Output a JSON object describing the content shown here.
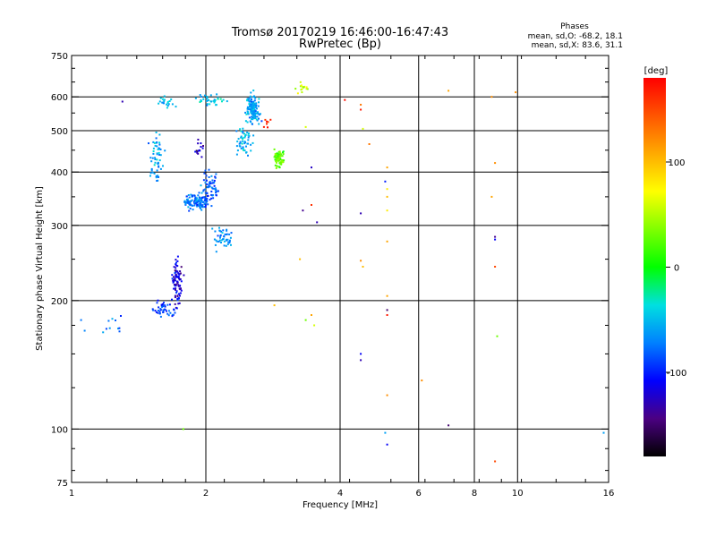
{
  "chart_data": {
    "type": "scatter",
    "title": "Tromsø 20170219 16:46:00-16:47:43",
    "subtitle": "RwPretec (Bp)",
    "stats": {
      "heading": "Phases",
      "line1": "mean, sd,O: -68.2, 18.1",
      "line2": "mean, sd,X: 83.6, 31.1"
    },
    "xlabel": "Frequency [MHz]",
    "ylabel": "Stationary phase Virtual Height [km]",
    "x_scale": "log",
    "y_scale": "log",
    "xlim": [
      1,
      16
    ],
    "ylim": [
      75,
      750
    ],
    "x_ticks": [
      1,
      2,
      4,
      6,
      8,
      10,
      16
    ],
    "x_tick_labels": [
      "1",
      "2",
      "4",
      "6",
      "8",
      "10",
      "16"
    ],
    "x_grid": [
      2,
      4,
      6,
      8,
      10
    ],
    "y_ticks": [
      75,
      100,
      200,
      300,
      400,
      500,
      600,
      750
    ],
    "y_tick_labels": [
      "75",
      "100",
      "200",
      "300",
      "400",
      "500",
      "600",
      "750"
    ],
    "y_grid": [
      100,
      200,
      300,
      400,
      500,
      600
    ],
    "grid": true,
    "colorbar": {
      "label": "[deg]",
      "range": [
        -180,
        180
      ],
      "ticks": [
        100,
        0,
        -100
      ],
      "tick_labels": [
        "100",
        "0",
        "-100"
      ]
    },
    "series": [
      {
        "clusters": [
          {
            "fc": 1.72,
            "hc": 220,
            "fs": 0.03,
            "hs": 0.13,
            "n": 90,
            "phase": -115
          },
          {
            "fc": 1.62,
            "hc": 190,
            "fs": 0.05,
            "hs": 0.04,
            "n": 45,
            "phase": -90
          },
          {
            "fc": 1.55,
            "hc": 430,
            "fs": 0.04,
            "hs": 0.13,
            "n": 55,
            "phase": -60
          },
          {
            "fc": 1.9,
            "hc": 340,
            "fs": 0.07,
            "hs": 0.04,
            "n": 130,
            "phase": -75
          },
          {
            "fc": 2.05,
            "hc": 370,
            "fs": 0.04,
            "hs": 0.08,
            "n": 60,
            "phase": -80
          },
          {
            "fc": 2.55,
            "hc": 560,
            "fs": 0.04,
            "hs": 0.07,
            "n": 150,
            "phase": -58
          },
          {
            "fc": 2.45,
            "hc": 470,
            "fs": 0.04,
            "hs": 0.07,
            "n": 50,
            "phase": -50
          },
          {
            "fc": 2.2,
            "hc": 280,
            "fs": 0.05,
            "hs": 0.06,
            "n": 45,
            "phase": -70
          },
          {
            "fc": 2.05,
            "hc": 590,
            "fs": 0.06,
            "hs": 0.04,
            "n": 35,
            "phase": -50
          },
          {
            "fc": 1.62,
            "hc": 580,
            "fs": 0.05,
            "hs": 0.04,
            "n": 20,
            "phase": -50
          },
          {
            "fc": 1.95,
            "hc": 450,
            "fs": 0.04,
            "hs": 0.04,
            "n": 15,
            "phase": -125
          },
          {
            "fc": 1.25,
            "hc": 175,
            "fs": 0.07,
            "hs": 0.05,
            "n": 10,
            "phase": -75
          },
          {
            "fc": 2.92,
            "hc": 430,
            "fs": 0.025,
            "hs": 0.05,
            "n": 70,
            "phase": 25
          },
          {
            "fc": 3.3,
            "hc": 630,
            "fs": 0.03,
            "hs": 0.03,
            "n": 14,
            "phase": 55
          },
          {
            "fc": 2.75,
            "hc": 520,
            "fs": 0.02,
            "hs": 0.03,
            "n": 6,
            "phase": 165
          }
        ],
        "points": [
          {
            "x": 1.05,
            "y": 180,
            "phase": -75
          },
          {
            "x": 1.07,
            "y": 170,
            "phase": -70
          },
          {
            "x": 1.3,
            "y": 585,
            "phase": -130
          },
          {
            "x": 1.78,
            "y": 100,
            "phase": 30
          },
          {
            "x": 2.7,
            "y": 510,
            "phase": 165
          },
          {
            "x": 2.85,
            "y": 195,
            "phase": 100
          },
          {
            "x": 3.25,
            "y": 250,
            "phase": 100
          },
          {
            "x": 3.3,
            "y": 325,
            "phase": -140
          },
          {
            "x": 3.35,
            "y": 510,
            "phase": 60
          },
          {
            "x": 3.45,
            "y": 410,
            "phase": -125
          },
          {
            "x": 3.45,
            "y": 335,
            "phase": 160
          },
          {
            "x": 3.55,
            "y": 305,
            "phase": -130
          },
          {
            "x": 3.35,
            "y": 180,
            "phase": 30
          },
          {
            "x": 3.45,
            "y": 185,
            "phase": 110
          },
          {
            "x": 3.5,
            "y": 175,
            "phase": 60
          },
          {
            "x": 4.1,
            "y": 590,
            "phase": 175
          },
          {
            "x": 4.45,
            "y": 575,
            "phase": 130
          },
          {
            "x": 4.45,
            "y": 560,
            "phase": 170
          },
          {
            "x": 4.5,
            "y": 505,
            "phase": 60
          },
          {
            "x": 4.65,
            "y": 465,
            "phase": 130
          },
          {
            "x": 4.45,
            "y": 320,
            "phase": -130
          },
          {
            "x": 4.45,
            "y": 248,
            "phase": 120
          },
          {
            "x": 4.5,
            "y": 240,
            "phase": 100
          },
          {
            "x": 4.45,
            "y": 150,
            "phase": -110
          },
          {
            "x": 4.45,
            "y": 145,
            "phase": -130
          },
          {
            "x": 5.1,
            "y": 410,
            "phase": 110
          },
          {
            "x": 5.05,
            "y": 380,
            "phase": -100
          },
          {
            "x": 5.1,
            "y": 365,
            "phase": 80
          },
          {
            "x": 5.1,
            "y": 350,
            "phase": 100
          },
          {
            "x": 5.1,
            "y": 325,
            "phase": 80
          },
          {
            "x": 5.1,
            "y": 275,
            "phase": 110
          },
          {
            "x": 5.1,
            "y": 205,
            "phase": 110
          },
          {
            "x": 5.1,
            "y": 190,
            "phase": -150
          },
          {
            "x": 5.1,
            "y": 185,
            "phase": 170
          },
          {
            "x": 5.1,
            "y": 120,
            "phase": 120
          },
          {
            "x": 5.05,
            "y": 98,
            "phase": -60
          },
          {
            "x": 5.1,
            "y": 92,
            "phase": -110
          },
          {
            "x": 6.1,
            "y": 130,
            "phase": 120
          },
          {
            "x": 7.0,
            "y": 620,
            "phase": 110
          },
          {
            "x": 7.0,
            "y": 102,
            "phase": -150
          },
          {
            "x": 8.75,
            "y": 600,
            "phase": 120
          },
          {
            "x": 8.9,
            "y": 420,
            "phase": 120
          },
          {
            "x": 8.75,
            "y": 350,
            "phase": 110
          },
          {
            "x": 8.9,
            "y": 282,
            "phase": -140
          },
          {
            "x": 8.9,
            "y": 278,
            "phase": -110
          },
          {
            "x": 8.9,
            "y": 240,
            "phase": 150
          },
          {
            "x": 9.0,
            "y": 165,
            "phase": 30
          },
          {
            "x": 8.9,
            "y": 84,
            "phase": 150
          },
          {
            "x": 9.9,
            "y": 615,
            "phase": 120
          },
          {
            "x": 15.6,
            "y": 98,
            "phase": -60
          }
        ]
      }
    ]
  }
}
